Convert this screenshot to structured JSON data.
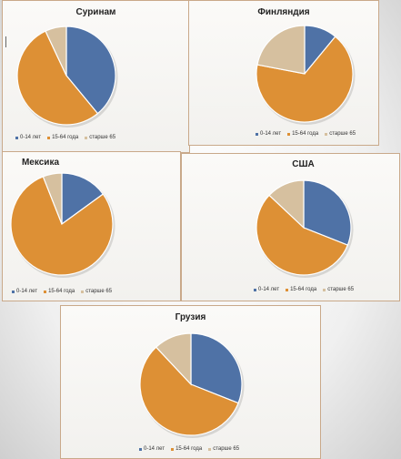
{
  "colors": {
    "s0": "#4f72a6",
    "s1": "#dd9035",
    "s2": "#d6c09f",
    "edge": "#ffffff"
  },
  "legend_labels": [
    "0-14 лет",
    "15-64 года",
    "старше 65"
  ],
  "chart_data": [
    {
      "type": "pie",
      "title": "Суринам",
      "categories": [
        "0-14 лет",
        "15-64 года",
        "старше 65"
      ],
      "values": [
        39,
        54,
        7
      ],
      "legend": "bottom"
    },
    {
      "type": "pie",
      "title": "Финляндия",
      "categories": [
        "0-14 лет",
        "15-64 года",
        "старше 65"
      ],
      "values": [
        11,
        67,
        22
      ],
      "legend": "bottom"
    },
    {
      "type": "pie",
      "title": "Мексика",
      "categories": [
        "0-14 лет",
        "15-64 года",
        "старше 65"
      ],
      "values": [
        15,
        79,
        6
      ],
      "legend": "bottom"
    },
    {
      "type": "pie",
      "title": "США",
      "categories": [
        "0-14 лет",
        "15-64 года",
        "старше 65"
      ],
      "values": [
        31,
        56,
        13
      ],
      "legend": "bottom"
    },
    {
      "type": "pie",
      "title": "Грузия",
      "categories": [
        "0-14 лет",
        "15-64 года",
        "старше 65"
      ],
      "values": [
        31,
        57,
        12
      ],
      "legend": "bottom"
    }
  ]
}
